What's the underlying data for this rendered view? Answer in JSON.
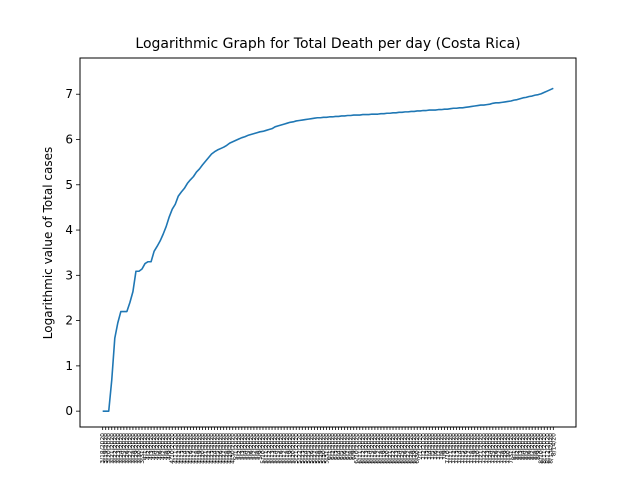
{
  "chart_data": {
    "type": "line",
    "title": "Logarithmic Graph for Total Death per day (Costa Rica)",
    "xlabel": "",
    "ylabel": "Logarithmic value of Total cases",
    "xaxis_type": "date",
    "x_start": "3/18/2020",
    "x_end": "8/14/20",
    "ylim": [
      -0.35,
      7.8
    ],
    "yticks": [
      0,
      1,
      2,
      3,
      4,
      5,
      6,
      7
    ],
    "grid": false,
    "legend": "none",
    "series": [
      {
        "color": "#1f77b4",
        "points": [
          [
            "3/18/2020",
            0.0
          ],
          [
            "3/19/2020",
            0.0
          ],
          [
            "3/20/2020",
            0.0
          ],
          [
            "3/21/2020",
            0.69
          ],
          [
            "3/22/2020",
            1.61
          ],
          [
            "3/23/2020",
            1.95
          ],
          [
            "3/24/2020",
            2.2
          ],
          [
            "3/25/2020",
            2.2
          ],
          [
            "3/26/2020",
            2.2
          ],
          [
            "3/27/2020",
            2.4
          ],
          [
            "3/28/2020",
            2.64
          ],
          [
            "3/29/2020",
            3.09
          ],
          [
            "3/30/2020",
            3.09
          ],
          [
            "3/31/2020",
            3.14
          ],
          [
            "4/1/2020",
            3.26
          ],
          [
            "4/2/2020",
            3.3
          ],
          [
            "4/3/2020",
            3.3
          ],
          [
            "4/4/2020",
            3.53
          ],
          [
            "4/5/2020",
            3.64
          ],
          [
            "4/6/2020",
            3.76
          ],
          [
            "4/7/2020",
            3.91
          ],
          [
            "4/8/2020",
            4.08
          ],
          [
            "4/9/2020",
            4.29
          ],
          [
            "4/10/2020",
            4.46
          ],
          [
            "4/11/2020",
            4.57
          ],
          [
            "4/12/2020",
            4.75
          ],
          [
            "4/13/2020",
            4.84
          ],
          [
            "4/14/2020",
            4.92
          ],
          [
            "4/15/2020",
            5.03
          ],
          [
            "4/16/2020",
            5.11
          ],
          [
            "4/17/2020",
            5.18
          ],
          [
            "4/18/2020",
            5.28
          ],
          [
            "4/19/2020",
            5.35
          ],
          [
            "4/20/2020",
            5.44
          ],
          [
            "4/21/2020",
            5.52
          ],
          [
            "4/22/2020",
            5.6
          ],
          [
            "4/23/2020",
            5.68
          ],
          [
            "4/24/2020",
            5.73
          ],
          [
            "4/25/2020",
            5.77
          ],
          [
            "4/26/2020",
            5.8
          ],
          [
            "4/27/2020",
            5.83
          ],
          [
            "4/28/2020",
            5.87
          ],
          [
            "4/29/2020",
            5.92
          ],
          [
            "4/30/2020",
            5.95
          ],
          [
            "5/1/2020",
            5.98
          ],
          [
            "5/2/2020",
            6.01
          ],
          [
            "5/3/2020",
            6.04
          ],
          [
            "5/4/2020",
            6.06
          ],
          [
            "5/5/2020",
            6.09
          ],
          [
            "5/6/2020",
            6.11
          ],
          [
            "5/7/2020",
            6.13
          ],
          [
            "5/8/2020",
            6.15
          ],
          [
            "5/9/2020",
            6.17
          ],
          [
            "5/10/2020",
            6.18
          ],
          [
            "5/11/2020",
            6.2
          ],
          [
            "5/12/2020",
            6.22
          ],
          [
            "5/13/2020",
            6.24
          ],
          [
            "5/14/2020",
            6.28
          ],
          [
            "5/15/2020",
            6.3
          ],
          [
            "5/16/2020",
            6.32
          ],
          [
            "5/17/2020",
            6.34
          ],
          [
            "5/18/2020",
            6.36
          ],
          [
            "5/19/2020",
            6.38
          ],
          [
            "5/20/2020",
            6.39
          ],
          [
            "5/21/2020",
            6.41
          ],
          [
            "5/22/2020",
            6.42
          ],
          [
            "5/23/2020",
            6.43
          ],
          [
            "5/24/2020",
            6.44
          ],
          [
            "5/25/2020",
            6.45
          ],
          [
            "5/26/2020",
            6.46
          ],
          [
            "5/27/2020",
            6.47
          ],
          [
            "5/28/2020",
            6.48
          ],
          [
            "5/29/2020",
            6.48
          ],
          [
            "5/30/2020",
            6.49
          ],
          [
            "5/31/2020",
            6.49
          ],
          [
            "6/1/2020",
            6.5
          ],
          [
            "6/2/2020",
            6.5
          ],
          [
            "6/3/2020",
            6.51
          ],
          [
            "6/4/2020",
            6.51
          ],
          [
            "6/5/2020",
            6.52
          ],
          [
            "6/6/2020",
            6.52
          ],
          [
            "6/7/2020",
            6.53
          ],
          [
            "6/8/2020",
            6.53
          ],
          [
            "6/9/2020",
            6.54
          ],
          [
            "6/10/2020",
            6.54
          ],
          [
            "6/11/2020",
            6.54
          ],
          [
            "6/12/2020",
            6.55
          ],
          [
            "6/13/2020",
            6.55
          ],
          [
            "6/14/2020",
            6.55
          ],
          [
            "6/15/2020",
            6.56
          ],
          [
            "6/16/2020",
            6.56
          ],
          [
            "6/17/2020",
            6.56
          ],
          [
            "6/18/2020",
            6.57
          ],
          [
            "6/19/2020",
            6.57
          ],
          [
            "6/20/2020",
            6.58
          ],
          [
            "6/21/2020",
            6.58
          ],
          [
            "6/22/2020",
            6.59
          ],
          [
            "6/23/2020",
            6.59
          ],
          [
            "6/24/2020",
            6.6
          ],
          [
            "6/25/2020",
            6.6
          ],
          [
            "6/26/2020",
            6.61
          ],
          [
            "6/27/2020",
            6.61
          ],
          [
            "6/28/2020",
            6.62
          ],
          [
            "6/29/2020",
            6.62
          ],
          [
            "6/30/2020",
            6.63
          ],
          [
            "7/1/2020",
            6.63
          ],
          [
            "7/2/2020",
            6.64
          ],
          [
            "7/3/2020",
            6.64
          ],
          [
            "7/4/2020",
            6.65
          ],
          [
            "7/5/2020",
            6.65
          ],
          [
            "7/6/2020",
            6.65
          ],
          [
            "7/7/2020",
            6.66
          ],
          [
            "7/8/2020",
            6.66
          ],
          [
            "7/9/2020",
            6.67
          ],
          [
            "7/10/2020",
            6.67
          ],
          [
            "7/11/2020",
            6.68
          ],
          [
            "7/12/2020",
            6.69
          ],
          [
            "7/13/2020",
            6.69
          ],
          [
            "7/14/2020",
            6.7
          ],
          [
            "7/15/2020",
            6.7
          ],
          [
            "7/16/2020",
            6.71
          ],
          [
            "7/17/2020",
            6.72
          ],
          [
            "7/18/2020",
            6.73
          ],
          [
            "7/19/2020",
            6.74
          ],
          [
            "7/20/2020",
            6.75
          ],
          [
            "7/21/2020",
            6.76
          ],
          [
            "7/22/2020",
            6.76
          ],
          [
            "7/23/2020",
            6.77
          ],
          [
            "7/24/2020",
            6.78
          ],
          [
            "7/25/2020",
            6.8
          ],
          [
            "7/26/2020",
            6.81
          ],
          [
            "7/27/2020",
            6.81
          ],
          [
            "7/28/2020",
            6.82
          ],
          [
            "7/29/2020",
            6.83
          ],
          [
            "7/30/2020",
            6.84
          ],
          [
            "7/31/2020",
            6.85
          ],
          [
            "8/1/2020",
            6.87
          ],
          [
            "8/2/2020",
            6.88
          ],
          [
            "8/3/2020",
            6.9
          ],
          [
            "8/4/2020",
            6.92
          ],
          [
            "8/5/2020",
            6.93
          ],
          [
            "8/6/2020",
            6.95
          ],
          [
            "8/7/2020",
            6.96
          ],
          [
            "8/8/2020",
            6.98
          ],
          [
            "8/9/2020",
            6.99
          ],
          [
            "8/10/2020",
            7.01
          ],
          [
            "8/11/2020",
            7.04
          ],
          [
            "8/12/2020",
            7.07
          ],
          [
            "8/13/2020",
            7.1
          ],
          [
            "8/14/2020",
            7.13
          ]
        ]
      }
    ]
  }
}
